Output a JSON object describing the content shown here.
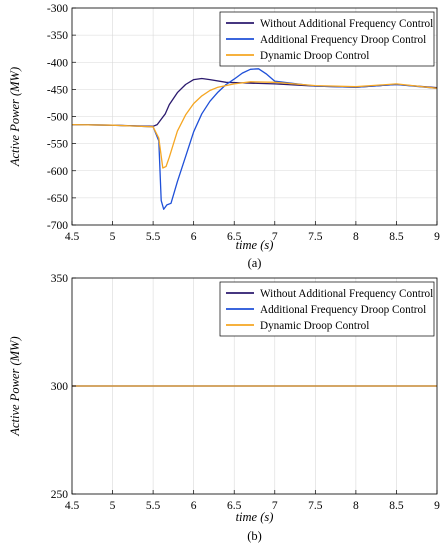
{
  "chart_data": [
    {
      "type": "line",
      "panel_label": "(a)",
      "xlabel": "time (s)",
      "ylabel": "Active Power (MW)",
      "xlim": [
        4.5,
        9
      ],
      "ylim": [
        -700,
        -300
      ],
      "xticks": [
        4.5,
        5,
        5.5,
        6,
        6.5,
        7,
        7.5,
        8,
        8.5,
        9
      ],
      "yticks": [
        -700,
        -650,
        -600,
        -550,
        -500,
        -450,
        -400,
        -350,
        -300
      ],
      "grid": true,
      "legend_position": "top-right",
      "colors": {
        "without": "#2b1a6e",
        "additional": "#1f50d8",
        "dynamic": "#f5a623"
      },
      "series": [
        {
          "name": "Without Additional Frequency Control",
          "x": [
            4.5,
            5.0,
            5.5,
            5.55,
            5.6,
            5.65,
            5.7,
            5.8,
            5.9,
            6.0,
            6.1,
            6.2,
            6.4,
            6.6,
            7.0,
            7.5,
            8.0,
            8.5,
            9.0
          ],
          "y": [
            -515,
            -516,
            -518,
            -515,
            -505,
            -495,
            -478,
            -456,
            -441,
            -432,
            -430,
            -432,
            -437,
            -438,
            -440,
            -444,
            -446,
            -441,
            -447
          ]
        },
        {
          "name": "Additional Frequency Droop Control",
          "x": [
            4.5,
            5.0,
            5.5,
            5.57,
            5.6,
            5.63,
            5.67,
            5.72,
            5.8,
            5.9,
            6.0,
            6.1,
            6.2,
            6.3,
            6.4,
            6.5,
            6.6,
            6.7,
            6.8,
            6.9,
            7.0,
            7.5,
            8.0,
            8.5,
            9.0
          ],
          "y": [
            -515,
            -516,
            -519,
            -545,
            -655,
            -671,
            -663,
            -660,
            -620,
            -574,
            -528,
            -495,
            -472,
            -455,
            -441,
            -431,
            -420,
            -413,
            -412,
            -422,
            -435,
            -444,
            -446,
            -441,
            -448
          ]
        },
        {
          "name": "Dynamic Droop Control",
          "x": [
            4.5,
            5.0,
            5.5,
            5.57,
            5.62,
            5.66,
            5.7,
            5.8,
            5.9,
            6.0,
            6.1,
            6.2,
            6.3,
            6.5,
            6.7,
            7.0,
            7.5,
            8.0,
            8.5,
            9.0
          ],
          "y": [
            -515,
            -516,
            -519,
            -540,
            -595,
            -592,
            -575,
            -527,
            -497,
            -476,
            -462,
            -452,
            -446,
            -440,
            -436,
            -437,
            -443,
            -445,
            -440,
            -448
          ]
        }
      ]
    },
    {
      "type": "line",
      "panel_label": "(b)",
      "xlabel": "time (s)",
      "ylabel": "Active Power (MW)",
      "xlim": [
        4.5,
        9
      ],
      "ylim": [
        250,
        350
      ],
      "xticks": [
        4.5,
        5,
        5.5,
        6,
        6.5,
        7,
        7.5,
        8,
        8.5,
        9
      ],
      "yticks": [
        250,
        300,
        350
      ],
      "grid": true,
      "legend_position": "top-right",
      "colors": {
        "without": "#2b1a6e",
        "additional": "#1f50d8",
        "dynamic": "#f5a623"
      },
      "series": [
        {
          "name": "Without Additional Frequency Control",
          "x": [
            4.5,
            9.0
          ],
          "y": [
            300,
            300
          ]
        },
        {
          "name": "Additional Frequency Droop Control",
          "x": [
            4.5,
            9.0
          ],
          "y": [
            300,
            300
          ]
        },
        {
          "name": "Dynamic Droop Control",
          "x": [
            4.5,
            9.0
          ],
          "y": [
            300,
            300
          ]
        }
      ]
    }
  ]
}
